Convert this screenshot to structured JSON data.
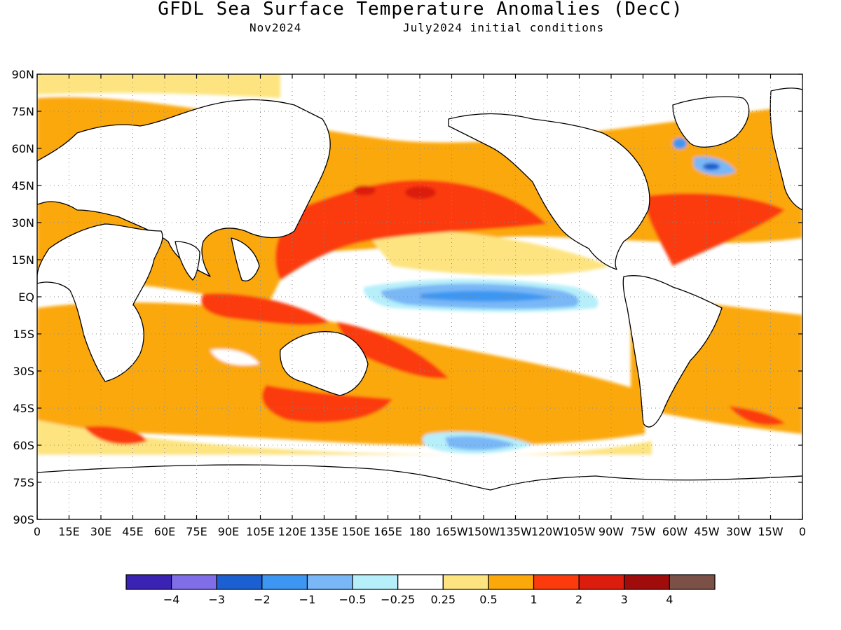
{
  "title": "GFDL Sea Surface Temperature Anomalies (DecC)",
  "subtitle_left": "Nov2024",
  "subtitle_right": "July2024 initial conditions",
  "lat_labels": [
    "90N",
    "75N",
    "60N",
    "45N",
    "30N",
    "15N",
    "EQ",
    "15S",
    "30S",
    "45S",
    "60S",
    "75S",
    "90S"
  ],
  "lon_labels": [
    "0",
    "15E",
    "30E",
    "45E",
    "60E",
    "75E",
    "90E",
    "105E",
    "120E",
    "135E",
    "150E",
    "165E",
    "180",
    "165W",
    "150W",
    "135W",
    "120W",
    "105W",
    "90W",
    "75W",
    "60W",
    "45W",
    "30W",
    "15W",
    "0"
  ],
  "colorbar": {
    "colors": [
      "#3a22b3",
      "#7f6ee8",
      "#1c5fd1",
      "#3d97f2",
      "#79b7f6",
      "#b6effa",
      "#ffffff",
      "#fde480",
      "#fba80a",
      "#fb3b0c",
      "#dc1c0c",
      "#a00c0c",
      "#7b5046"
    ],
    "labels": [
      "-4",
      "-3",
      "-2",
      "-1",
      "-0.5",
      "-0.25",
      "0.25",
      "0.5",
      "1",
      "2",
      "3",
      "4"
    ]
  },
  "map_extent": {
    "lon": [
      0,
      360
    ],
    "lat": [
      -90,
      90
    ]
  }
}
